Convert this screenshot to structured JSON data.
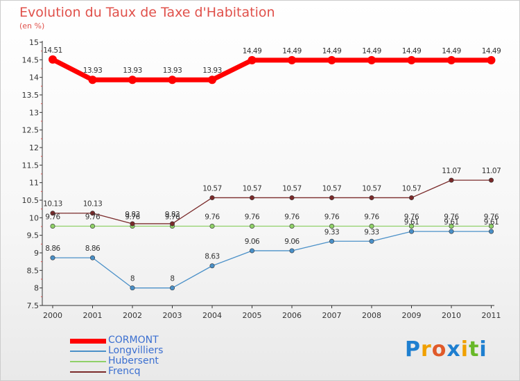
{
  "header": {
    "title": "Evolution du Taux de Taxe d'Habitation",
    "subtitle": "(en %)"
  },
  "logo": {
    "letters": [
      "P",
      "r",
      "o",
      "x",
      "i",
      "t",
      "i"
    ],
    "colors": [
      "#1e7fd0",
      "#f0a000",
      "#e05a2a",
      "#1e7fd0",
      "#f0a000",
      "#68b828",
      "#1e7fd0"
    ]
  },
  "chart_data": {
    "type": "line",
    "x": [
      "2000",
      "2001",
      "2002",
      "2003",
      "2004",
      "2005",
      "2006",
      "2007",
      "2008",
      "2009",
      "2010",
      "2011"
    ],
    "ylim": [
      7.5,
      15
    ],
    "yticks": [
      "7.5",
      "8",
      "8.5",
      "9",
      "9.5",
      "10",
      "10.5",
      "11",
      "11.5",
      "12",
      "12.5",
      "13",
      "13.5",
      "14",
      "14.5",
      "15"
    ],
    "grid": false,
    "legend": "bottom-left",
    "series": [
      {
        "name": "CORMONT",
        "color": "#ff0000",
        "values": [
          14.51,
          13.93,
          13.93,
          13.93,
          13.93,
          14.49,
          14.49,
          14.49,
          14.49,
          14.49,
          14.49,
          14.49
        ],
        "labels": [
          "14.51",
          "13.93",
          "13.93",
          "13.93",
          "13.93",
          "14.49",
          "14.49",
          "14.49",
          "14.49",
          "14.49",
          "14.49",
          "14.49"
        ]
      },
      {
        "name": "Longvilliers",
        "color": "#4a90c8",
        "values": [
          8.86,
          8.86,
          8,
          8,
          8.63,
          9.06,
          9.06,
          9.33,
          9.33,
          9.61,
          9.61,
          9.61
        ],
        "labels": [
          "8.86",
          "8.86",
          "8",
          "8",
          "8.63",
          "9.06",
          "9.06",
          "9.33",
          "9.33",
          "9.61",
          "9.61",
          "9.61"
        ]
      },
      {
        "name": "Hubersent",
        "color": "#8fd068",
        "values": [
          9.76,
          9.76,
          9.76,
          9.76,
          9.76,
          9.76,
          9.76,
          9.76,
          9.76,
          9.76,
          9.76,
          9.76
        ],
        "labels": [
          "9.76",
          "9.76",
          "9.76",
          "9.76",
          "9.76",
          "9.76",
          "9.76",
          "9.76",
          "9.76",
          "9.76",
          "9.76",
          "9.76"
        ]
      },
      {
        "name": "Frencq",
        "color": "#7a2a2a",
        "values": [
          10.13,
          10.13,
          9.83,
          9.83,
          10.57,
          10.57,
          10.57,
          10.57,
          10.57,
          10.57,
          11.07,
          11.07
        ],
        "labels": [
          "10.13",
          "10.13",
          "9.83",
          "9.83",
          "10.57",
          "10.57",
          "10.57",
          "10.57",
          "10.57",
          "10.57",
          "11.07",
          "11.07"
        ]
      }
    ]
  }
}
